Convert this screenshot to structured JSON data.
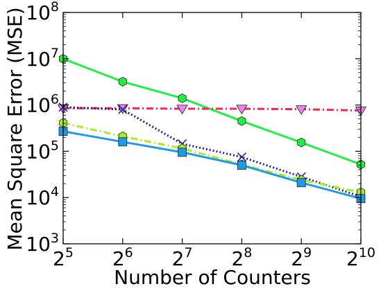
{
  "chart_data": {
    "type": "line",
    "title": "",
    "xlabel": "Number of Counters",
    "ylabel": "Mean Square Error (MSE)",
    "x_scale": "log2",
    "y_scale": "log10",
    "x": [
      32,
      64,
      128,
      256,
      512,
      1024
    ],
    "xlim": [
      32,
      1024
    ],
    "ylim": [
      1000,
      100000000
    ],
    "x_ticks": [
      {
        "base": "2",
        "exp": "5"
      },
      {
        "base": "2",
        "exp": "6"
      },
      {
        "base": "2",
        "exp": "7"
      },
      {
        "base": "2",
        "exp": "8"
      },
      {
        "base": "2",
        "exp": "9"
      },
      {
        "base": "2",
        "exp": "10"
      }
    ],
    "y_ticks": [
      {
        "base": "10",
        "exp": "3"
      },
      {
        "base": "10",
        "exp": "4"
      },
      {
        "base": "10",
        "exp": "5"
      },
      {
        "base": "10",
        "exp": "6"
      },
      {
        "base": "10",
        "exp": "7"
      },
      {
        "base": "10",
        "exp": "8"
      }
    ],
    "grid": false,
    "legend": "none",
    "series": [
      {
        "color": "#22ee44",
        "marker": "hexagon",
        "line": "solid",
        "values": [
          10000000,
          3200000,
          1400000,
          450000,
          155000,
          52000
        ]
      },
      {
        "color": "#ff1f5b",
        "marker": "triangle-down",
        "line": "dashdot",
        "marker_color": "#ee82ee",
        "values": [
          850000,
          850000,
          830000,
          830000,
          810000,
          760000
        ]
      },
      {
        "color": "#1f1f8f",
        "marker": "x",
        "line": "dotted",
        "values": [
          900000,
          800000,
          145000,
          75000,
          28000,
          10500
        ]
      },
      {
        "color": "#aaee22",
        "marker": "hexagon",
        "line": "dashdot",
        "values": [
          410000,
          210000,
          115000,
          52000,
          24000,
          13000
        ]
      },
      {
        "color": "#1e9be8",
        "marker": "square",
        "line": "solid",
        "values": [
          270000,
          160000,
          95000,
          50000,
          21000,
          9500
        ]
      }
    ]
  }
}
